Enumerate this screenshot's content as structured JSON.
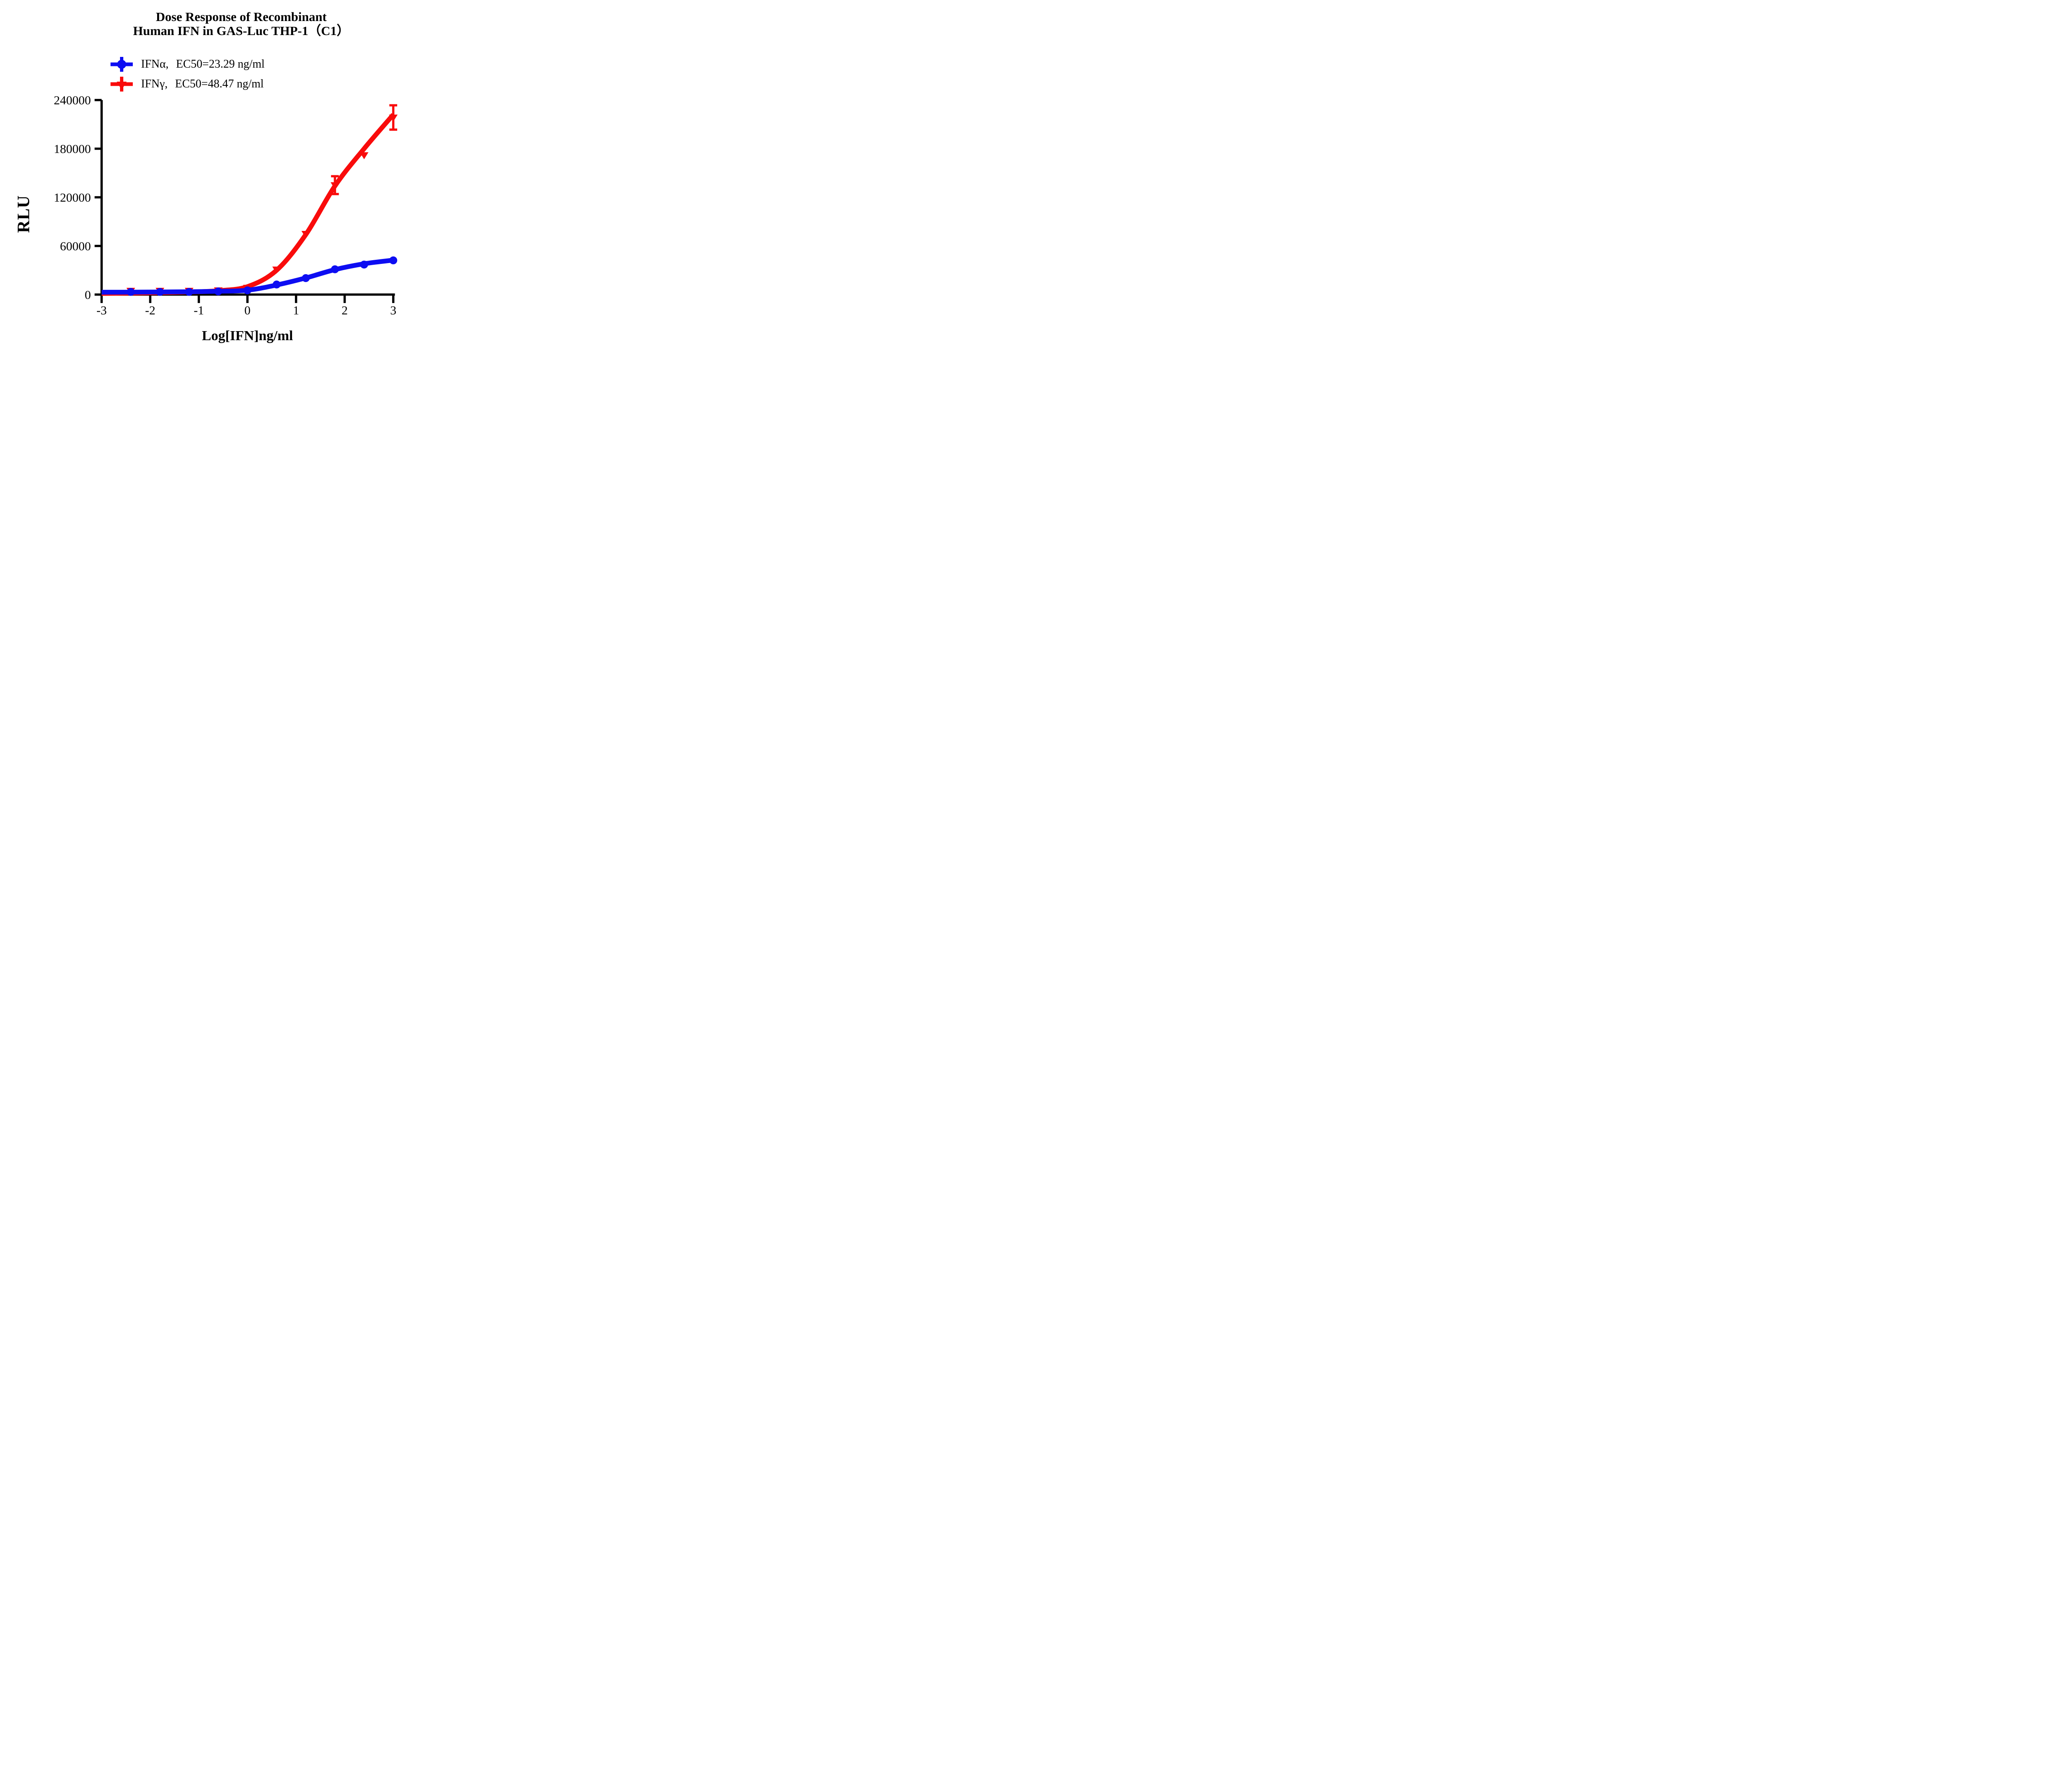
{
  "title": {
    "line1": "Dose Response of Recombinant",
    "line2": "Human IFN in GAS-Luc THP-1（C1）"
  },
  "legend": [
    {
      "series": "IFNα,",
      "ec50": "EC50=23.29 ng/ml",
      "marker": "circle"
    },
    {
      "series": "IFNγ,",
      "ec50": "EC50=48.47 ng/ml",
      "marker": "triangle-down"
    }
  ],
  "colors": {
    "ifn_alpha": "#0D0DF2",
    "ifn_gamma": "#F90B0B",
    "axis": "#000000"
  },
  "axes": {
    "x_label": "Log[IFN]ng/ml",
    "y_label": "RLU",
    "x_ticks": [
      -3,
      -2,
      -1,
      0,
      1,
      2,
      3
    ],
    "y_ticks": [
      0,
      60000,
      120000,
      180000,
      240000
    ],
    "x_range": [
      -3,
      3
    ],
    "y_range": [
      0,
      240000
    ],
    "grid": false,
    "legend_position": "top-center"
  },
  "chart_data": {
    "type": "scatter",
    "title": "Dose Response of Recombinant Human IFN in GAS-Luc THP-1（C1）",
    "xlabel": "Log[IFN]ng/ml",
    "ylabel": "RLU",
    "xlim": [
      -3,
      3
    ],
    "ylim": [
      0,
      240000
    ],
    "x": [
      -2.4,
      -1.8,
      -1.2,
      -0.6,
      0,
      0.6,
      1.2,
      1.8,
      2.4,
      3.0
    ],
    "series": [
      {
        "name": "IFNα, EC50=23.29 ng/ml",
        "marker": "circle",
        "color_key": "ifn_alpha",
        "values": [
          3300,
          3300,
          3300,
          3900,
          5200,
          12400,
          20300,
          31200,
          37000,
          42200
        ],
        "errors": [
          null,
          null,
          null,
          null,
          null,
          null,
          null,
          null,
          null,
          null
        ],
        "fit_curve": [
          [
            -3.0,
            2900
          ],
          [
            -2.4,
            3000
          ],
          [
            -1.8,
            3200
          ],
          [
            -1.2,
            3500
          ],
          [
            -0.6,
            4100
          ],
          [
            0.0,
            5400
          ],
          [
            0.6,
            11800
          ],
          [
            1.2,
            20500
          ],
          [
            1.8,
            30800
          ],
          [
            2.4,
            38000
          ],
          [
            3.0,
            42500
          ]
        ]
      },
      {
        "name": "IFNγ, EC50=48.47 ng/ml",
        "marker": "triangle-down",
        "color_key": "ifn_gamma",
        "values": [
          4800,
          4800,
          4800,
          5300,
          8500,
          31000,
          75000,
          135000,
          172000,
          218500
        ],
        "errors": [
          null,
          null,
          null,
          null,
          null,
          null,
          null,
          11000,
          null,
          15000
        ],
        "fit_curve": [
          [
            -3.0,
            1400
          ],
          [
            -2.4,
            1800
          ],
          [
            -1.8,
            2400
          ],
          [
            -1.2,
            3200
          ],
          [
            -0.6,
            4800
          ],
          [
            0.0,
            9800
          ],
          [
            0.6,
            30000
          ],
          [
            1.2,
            74000
          ],
          [
            1.8,
            134000
          ],
          [
            2.4,
            180000
          ],
          [
            3.0,
            222000
          ]
        ]
      }
    ]
  }
}
